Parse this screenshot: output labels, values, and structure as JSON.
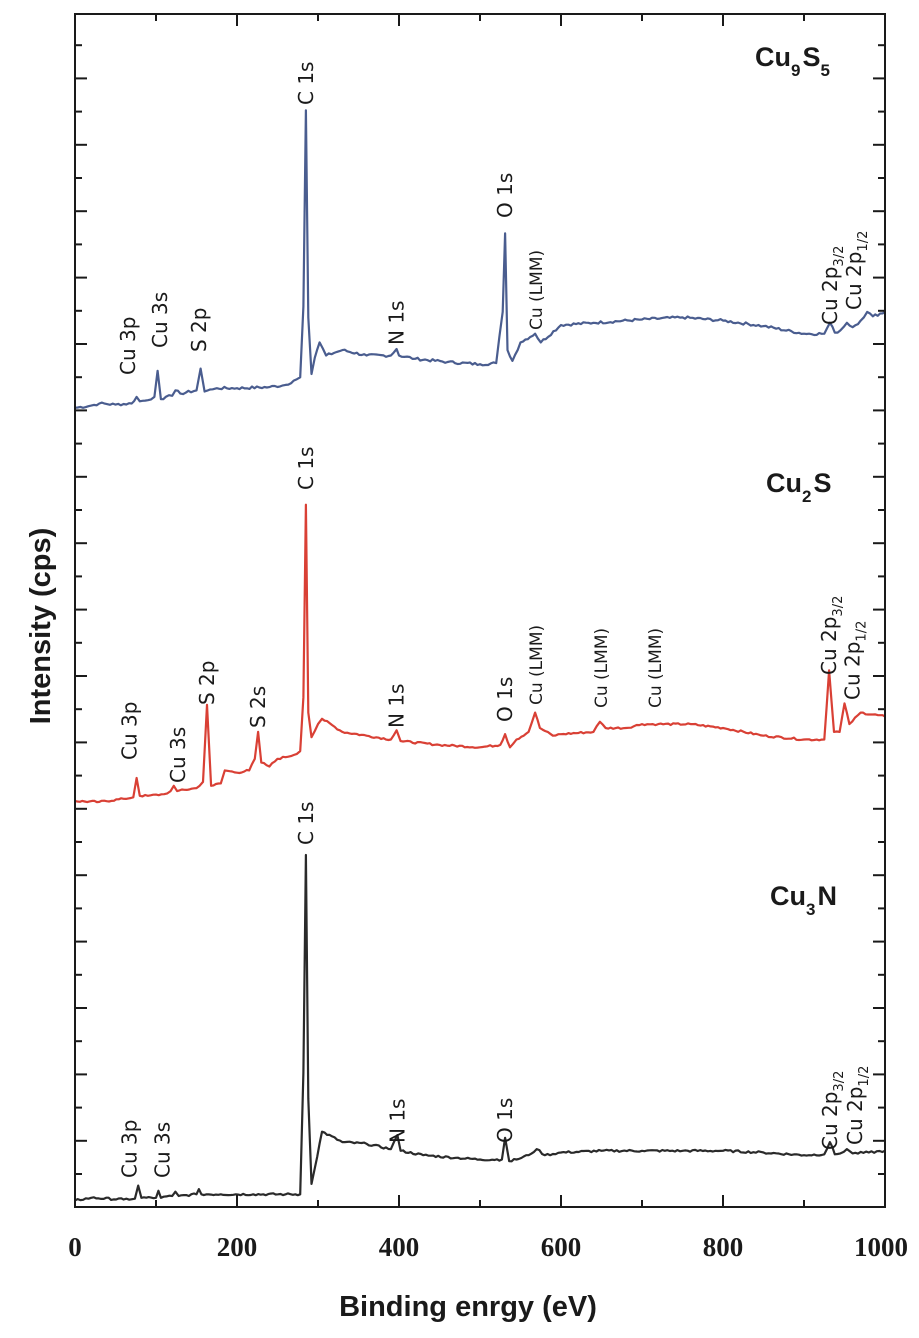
{
  "chart_data": {
    "type": "line",
    "title": "",
    "xlabel": "Binding enrgy (eV)",
    "ylabel": "Intensity (cps)",
    "xlim": [
      0,
      1000
    ],
    "x_ticks": [
      "0",
      "200",
      "400",
      "600",
      "800",
      "1000"
    ],
    "y_tick_labels": "none",
    "grid": false,
    "legend": "none (compound names written beside each spectrum)",
    "series": [
      {
        "name_parts": [
          "Cu",
          "9",
          "S",
          "5"
        ],
        "color": "#4a5d8f",
        "y_units": "arbitrary (stacked offset)",
        "x": [
          0,
          20,
          30,
          50,
          70,
          76,
          80,
          90,
          98,
          102,
          106,
          112,
          120,
          124,
          130,
          150,
          155,
          160,
          170,
          175,
          200,
          240,
          260,
          270,
          278,
          282,
          285,
          288,
          292,
          296,
          302,
          310,
          330,
          360,
          390,
          397,
          400,
          420,
          460,
          500,
          520,
          528,
          531,
          534,
          540,
          550,
          568,
          575,
          600,
          640,
          700,
          750,
          800,
          850,
          900,
          925,
          932,
          938,
          945,
          953,
          960,
          970,
          978,
          985,
          1000
        ],
        "y": [
          0.02,
          0.04,
          0.06,
          0.05,
          0.06,
          0.12,
          0.08,
          0.09,
          0.12,
          0.36,
          0.1,
          0.12,
          0.13,
          0.18,
          0.15,
          0.18,
          0.38,
          0.17,
          0.19,
          0.2,
          0.2,
          0.21,
          0.23,
          0.27,
          0.3,
          0.95,
          2.75,
          0.85,
          0.33,
          0.48,
          0.62,
          0.5,
          0.55,
          0.5,
          0.5,
          0.56,
          0.5,
          0.47,
          0.44,
          0.42,
          0.43,
          0.9,
          1.62,
          0.55,
          0.45,
          0.62,
          0.7,
          0.62,
          0.78,
          0.8,
          0.83,
          0.85,
          0.82,
          0.77,
          0.7,
          0.7,
          0.8,
          0.71,
          0.73,
          0.8,
          0.76,
          0.82,
          0.9,
          0.86,
          0.9
        ]
      },
      {
        "name_parts": [
          "Cu",
          "2",
          "S"
        ],
        "color": "#d94035",
        "y_units": "arbitrary (stacked offset)",
        "x": [
          0,
          30,
          60,
          72,
          76,
          80,
          90,
          110,
          118,
          122,
          126,
          150,
          158,
          163,
          168,
          180,
          185,
          200,
          215,
          222,
          226,
          230,
          240,
          250,
          270,
          278,
          282,
          285,
          288,
          292,
          300,
          305,
          330,
          360,
          390,
          397,
          402,
          450,
          500,
          525,
          531,
          537,
          545,
          560,
          568,
          574,
          590,
          600,
          640,
          648,
          655,
          680,
          700,
          720,
          760,
          800,
          850,
          900,
          925,
          931,
          937,
          944,
          950,
          956,
          970,
          1000
        ],
        "y": [
          0.05,
          0.04,
          0.08,
          0.1,
          0.35,
          0.12,
          0.12,
          0.14,
          0.18,
          0.25,
          0.18,
          0.22,
          0.3,
          1.3,
          0.25,
          0.28,
          0.45,
          0.42,
          0.45,
          0.6,
          0.95,
          0.55,
          0.5,
          0.6,
          0.65,
          0.7,
          1.4,
          3.9,
          1.2,
          0.88,
          1.05,
          1.12,
          0.95,
          0.9,
          0.85,
          0.97,
          0.83,
          0.78,
          0.75,
          0.78,
          0.92,
          0.75,
          0.85,
          0.95,
          1.2,
          1.0,
          0.9,
          0.92,
          0.95,
          1.08,
          1.0,
          1.0,
          1.05,
          1.05,
          1.05,
          1.0,
          0.9,
          0.85,
          0.85,
          1.75,
          0.95,
          0.95,
          1.32,
          1.05,
          1.2,
          1.15
        ]
      },
      {
        "name_parts": [
          "Cu",
          "3",
          "N"
        ],
        "color": "#2a2a2a",
        "y_units": "arbitrary (stacked offset)",
        "x": [
          0,
          20,
          60,
          74,
          78,
          82,
          100,
          103,
          106,
          120,
          124,
          128,
          150,
          153,
          156,
          180,
          220,
          260,
          278,
          282,
          285,
          288,
          292,
          296,
          305,
          330,
          360,
          390,
          398,
          402,
          430,
          470,
          500,
          527,
          531,
          536,
          545,
          560,
          570,
          580,
          600,
          650,
          700,
          750,
          800,
          850,
          900,
          925,
          932,
          938,
          945,
          953,
          960,
          980,
          1000
        ],
        "y": [
          0.03,
          0.06,
          0.04,
          0.05,
          0.2,
          0.06,
          0.06,
          0.14,
          0.06,
          0.08,
          0.13,
          0.08,
          0.1,
          0.16,
          0.1,
          0.1,
          0.1,
          0.1,
          0.1,
          1.5,
          4.0,
          1.2,
          0.22,
          0.4,
          0.82,
          0.7,
          0.68,
          0.62,
          0.78,
          0.6,
          0.55,
          0.52,
          0.5,
          0.5,
          0.75,
          0.48,
          0.5,
          0.55,
          0.62,
          0.55,
          0.58,
          0.6,
          0.6,
          0.6,
          0.6,
          0.58,
          0.55,
          0.56,
          0.7,
          0.56,
          0.57,
          0.62,
          0.57,
          0.58,
          0.6
        ]
      }
    ],
    "annotations": [
      {
        "panel": 0,
        "text": "Cu 3p",
        "x": 75
      },
      {
        "panel": 0,
        "text": "Cu 3s",
        "x": 100
      },
      {
        "panel": 0,
        "text": "S 2p",
        "x": 153
      },
      {
        "panel": 0,
        "text": "C 1s",
        "x": 285
      },
      {
        "panel": 0,
        "text": "N 1s",
        "x": 397
      },
      {
        "panel": 0,
        "text": "O 1s",
        "x": 531
      },
      {
        "panel": 0,
        "text": "Cu (LMM)",
        "x": 568
      },
      {
        "panel": 0,
        "text": "Cu 2p3/2",
        "x": 932
      },
      {
        "panel": 0,
        "text": "Cu 2p1/2",
        "x": 952
      },
      {
        "panel": 1,
        "text": "Cu 3p",
        "x": 77
      },
      {
        "panel": 1,
        "text": "Cu 3s",
        "x": 122
      },
      {
        "panel": 1,
        "text": "S 2p",
        "x": 163
      },
      {
        "panel": 1,
        "text": "S 2s",
        "x": 226
      },
      {
        "panel": 1,
        "text": "C 1s",
        "x": 285
      },
      {
        "panel": 1,
        "text": "N 1s",
        "x": 397
      },
      {
        "panel": 1,
        "text": "O 1s",
        "x": 531
      },
      {
        "panel": 1,
        "text": "Cu (LMM)",
        "x": 568
      },
      {
        "panel": 1,
        "text": "Cu (LMM)",
        "x": 648
      },
      {
        "panel": 1,
        "text": "Cu (LMM)",
        "x": 715
      },
      {
        "panel": 1,
        "text": "Cu 2p3/2",
        "x": 931
      },
      {
        "panel": 1,
        "text": "Cu 2p1/2",
        "x": 950
      },
      {
        "panel": 2,
        "text": "Cu 3p",
        "x": 77
      },
      {
        "panel": 2,
        "text": "Cu 3s",
        "x": 103
      },
      {
        "panel": 2,
        "text": "C 1s",
        "x": 285
      },
      {
        "panel": 2,
        "text": "N 1s",
        "x": 398
      },
      {
        "panel": 2,
        "text": "O 1s",
        "x": 531
      },
      {
        "panel": 2,
        "text": "Cu 2p3/2",
        "x": 932
      },
      {
        "panel": 2,
        "text": "Cu 2p1/2",
        "x": 953
      }
    ]
  }
}
